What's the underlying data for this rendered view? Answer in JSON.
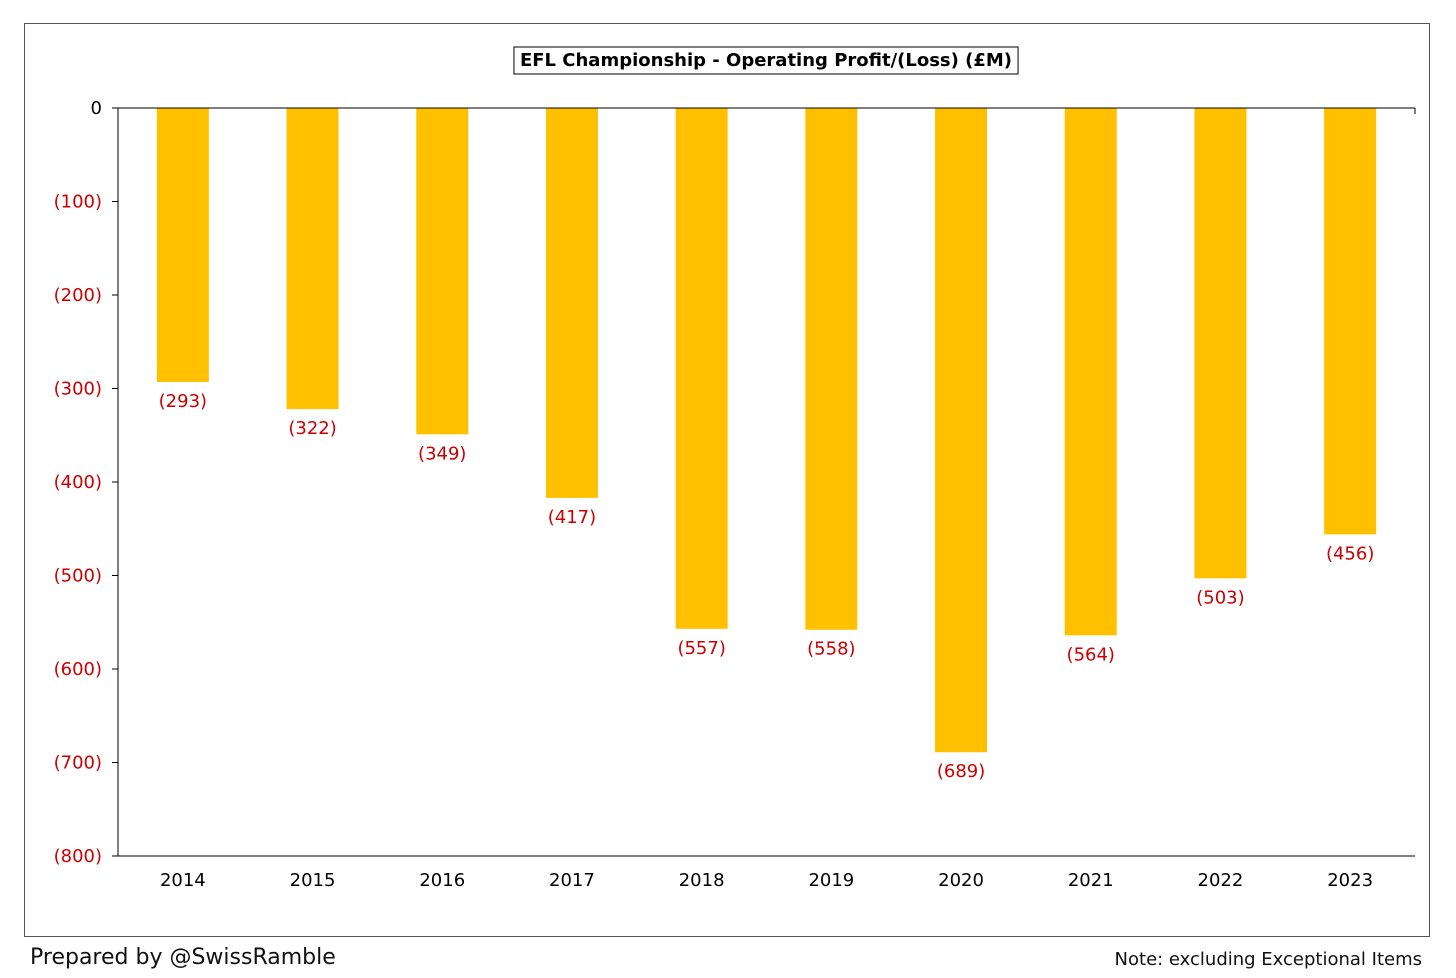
{
  "chart_data": {
    "type": "bar",
    "title": "EFL Championship - Operating Profit/(Loss) (£M)",
    "categories": [
      "2014",
      "2015",
      "2016",
      "2017",
      "2018",
      "2019",
      "2020",
      "2021",
      "2022",
      "2023"
    ],
    "values": [
      -293,
      -322,
      -349,
      -417,
      -557,
      -558,
      -689,
      -564,
      -503,
      -456
    ],
    "value_labels": [
      "(293)",
      "(322)",
      "(349)",
      "(417)",
      "(557)",
      "(558)",
      "(689)",
      "(564)",
      "(503)",
      "(456)"
    ],
    "ylim": [
      -800,
      0
    ],
    "yticks": [
      0,
      -100,
      -200,
      -300,
      -400,
      -500,
      -600,
      -700,
      -800
    ],
    "ytick_labels": [
      "0",
      "(100)",
      "(200)",
      "(300)",
      "(400)",
      "(500)",
      "(600)",
      "(700)",
      "(800)"
    ],
    "grid": false,
    "legend": "none",
    "colors": {
      "bar": "#FFC000",
      "negative_text": "#CC0000",
      "axis": "#000000"
    }
  },
  "footer": {
    "left": "Prepared by @SwissRamble",
    "right": "Note: excluding Exceptional Items"
  }
}
